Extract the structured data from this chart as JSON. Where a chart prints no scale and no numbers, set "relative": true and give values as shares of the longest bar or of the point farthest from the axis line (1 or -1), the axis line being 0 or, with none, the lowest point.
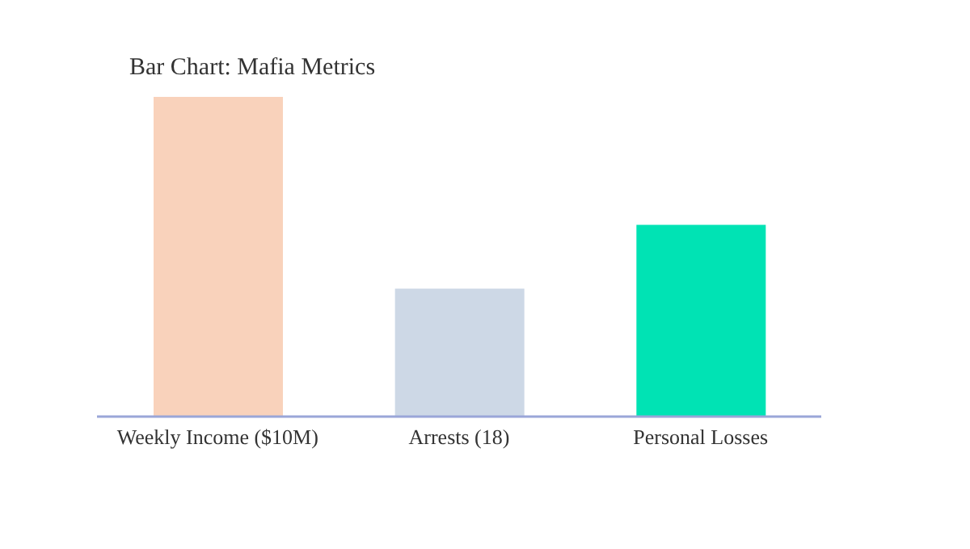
{
  "chart_data": {
    "type": "bar",
    "title": "Bar Chart: Mafia Metrics",
    "categories": [
      "Weekly Income ($10M)",
      "Arrests (18)",
      "Personal Losses"
    ],
    "values": [
      1,
      0.4,
      0.6
    ],
    "colors": [
      "#f9d2bb",
      "#cdd8e6",
      "#00e3b4"
    ],
    "relative": true,
    "grid": false,
    "legend": false
  }
}
